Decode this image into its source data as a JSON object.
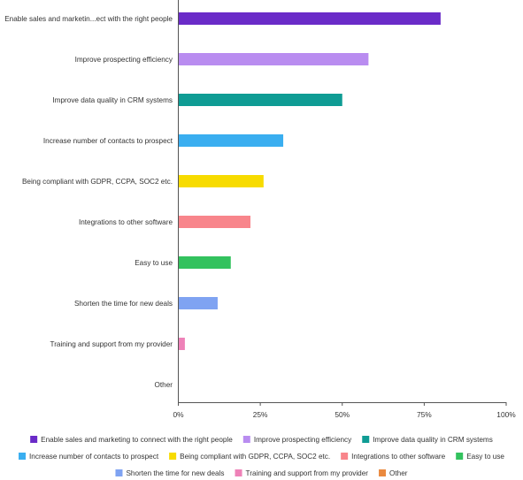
{
  "chart_data": {
    "type": "bar",
    "orientation": "horizontal",
    "categories": [
      "Enable sales and marketin...ect with the right people",
      "Improve prospecting efficiency",
      "Improve data quality in CRM systems",
      "Increase number of contacts to prospect",
      "Being compliant with GDPR, CCPA, SOC2 etc.",
      "Integrations to other software",
      "Easy to use",
      "Shorten the time for new deals",
      "Training and support from my provider",
      "Other"
    ],
    "values": [
      80,
      58,
      50,
      32,
      26,
      22,
      16,
      12,
      2,
      0
    ],
    "colors": [
      "#6a2bc8",
      "#b98cf0",
      "#0f9c94",
      "#3aaef0",
      "#f7db00",
      "#f8858b",
      "#33c25e",
      "#7fa3f2",
      "#ee82b8",
      "#ea8a3f"
    ],
    "xlim": [
      0,
      100
    ],
    "xticks": [
      "0%",
      "25%",
      "50%",
      "75%",
      "100%"
    ],
    "grid": false,
    "legend_position": "bottom",
    "legend": [
      "Enable sales and marketing to connect with the right people",
      "Improve prospecting efficiency",
      "Improve data quality in CRM systems",
      "Increase number of contacts to prospect",
      "Being compliant with GDPR, CCPA, SOC2 etc.",
      "Integrations to other software",
      "Easy to use",
      "Shorten the time for new deals",
      "Training and support from my provider",
      "Other"
    ]
  }
}
